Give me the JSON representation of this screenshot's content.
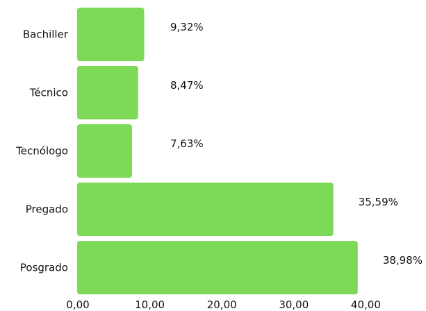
{
  "chart_data": {
    "type": "bar",
    "orientation": "horizontal",
    "categories": [
      "Bachiller",
      "Técnico",
      "Tecnólogo",
      "Pregado",
      "Posgrado"
    ],
    "values": [
      9.32,
      8.47,
      7.63,
      35.59,
      38.98
    ],
    "value_labels": [
      "9,32%",
      "8,47%",
      "7,63%",
      "35,59%",
      "38,98%"
    ],
    "x_ticks": [
      0,
      10,
      20,
      30,
      40
    ],
    "x_tick_labels": [
      "0,00",
      "10,00",
      "20,00",
      "30,00",
      "40,00"
    ],
    "xlim": [
      0,
      40
    ],
    "grid": false,
    "bar_color": "#7ed957",
    "title": "",
    "xlabel": "",
    "ylabel": ""
  }
}
